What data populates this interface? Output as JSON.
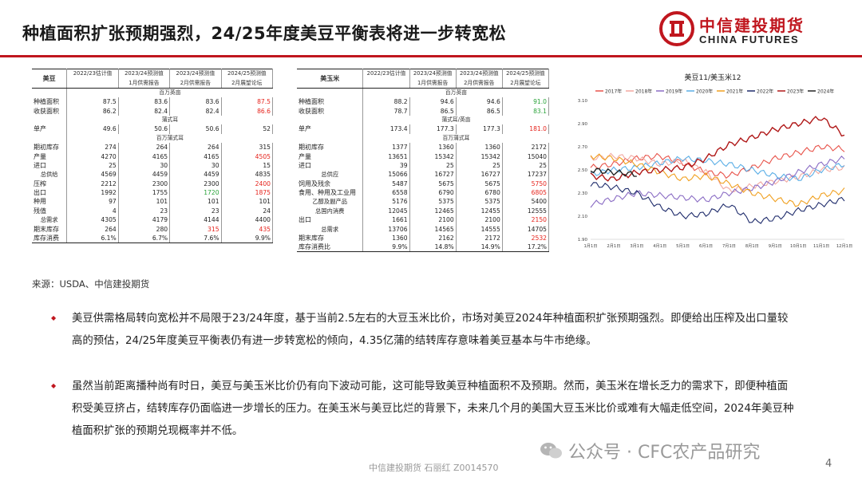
{
  "header": {
    "title": "种植面积扩张预期强烈，24/25年度美豆平衡表将进一步转宽松"
  },
  "logo": {
    "cn": "中信建投期货",
    "en": "CHINA FUTURES"
  },
  "colors": {
    "brand_red": "#c0161e",
    "highlight_red": "#e6221b",
    "highlight_green": "#2aa33a"
  },
  "soy_table": {
    "name": "美豆",
    "headers": [
      [
        "2022/23估计值",
        ""
      ],
      [
        "2023/24预测值",
        "1月供需报告"
      ],
      [
        "2023/24预测值",
        "2月供需报告"
      ],
      [
        "2024/25预测值",
        "2月展望论坛"
      ]
    ],
    "rows": [
      {
        "type": "unit",
        "text": "百万英亩"
      },
      {
        "label": "种植面积",
        "values": [
          "87.5",
          "83.6",
          "83.6",
          "87.5"
        ],
        "colors": [
          "",
          "",
          "",
          "red"
        ]
      },
      {
        "label": "收获面积",
        "values": [
          "86.2",
          "82.4",
          "82.4",
          "86.6"
        ],
        "colors": [
          "",
          "",
          "",
          "red"
        ]
      },
      {
        "type": "unit",
        "text": "蒲式耳"
      },
      {
        "label": "单产",
        "values": [
          "49.6",
          "50.6",
          "50.6",
          "52"
        ],
        "colors": [
          "",
          "",
          "",
          ""
        ]
      },
      {
        "type": "unit",
        "text": "百万蒲式耳"
      },
      {
        "label": "期初库存",
        "values": [
          "274",
          "264",
          "264",
          "315"
        ],
        "colors": [
          "",
          "",
          "",
          ""
        ]
      },
      {
        "label": "产量",
        "values": [
          "4270",
          "4165",
          "4165",
          "4505"
        ],
        "colors": [
          "",
          "",
          "",
          "red"
        ]
      },
      {
        "label": "进口",
        "values": [
          "25",
          "30",
          "30",
          "15"
        ],
        "colors": [
          "",
          "",
          "",
          ""
        ]
      },
      {
        "label": "总供给",
        "values": [
          "4569",
          "4459",
          "4459",
          "4835"
        ],
        "colors": [
          "",
          "",
          "",
          ""
        ],
        "center": true
      },
      {
        "label": "压榨",
        "values": [
          "2212",
          "2300",
          "2300",
          "2400"
        ],
        "colors": [
          "",
          "",
          "",
          "red"
        ]
      },
      {
        "label": "出口",
        "values": [
          "1992",
          "1755",
          "1720",
          "1875"
        ],
        "colors": [
          "",
          "",
          "green",
          "red"
        ]
      },
      {
        "label": "种用",
        "values": [
          "97",
          "101",
          "101",
          "101"
        ],
        "colors": [
          "",
          "",
          "",
          ""
        ]
      },
      {
        "label": "残值",
        "values": [
          "4",
          "23",
          "23",
          "24"
        ],
        "colors": [
          "",
          "",
          "",
          ""
        ]
      },
      {
        "label": "总需求",
        "values": [
          "4305",
          "4179",
          "4144",
          "4400"
        ],
        "colors": [
          "",
          "",
          "",
          ""
        ],
        "center": true
      },
      {
        "label": "期末库存",
        "values": [
          "264",
          "280",
          "315",
          "435"
        ],
        "colors": [
          "",
          "",
          "red",
          "red"
        ]
      },
      {
        "label": "库存消费",
        "values": [
          "6.1%",
          "6.7%",
          "7.6%",
          "9.9%"
        ],
        "colors": [
          "",
          "",
          "",
          ""
        ]
      }
    ]
  },
  "corn_table": {
    "name": "美玉米",
    "headers": [
      [
        "2022/23估计值",
        ""
      ],
      [
        "2023/24预测值",
        "1月供需报告"
      ],
      [
        "2023/24预测值",
        "2月供需报告"
      ],
      [
        "2024/25预测值",
        "2月展望论坛"
      ]
    ],
    "rows": [
      {
        "type": "unit",
        "text": "百万英亩"
      },
      {
        "label": "种植面积",
        "values": [
          "88.2",
          "94.6",
          "94.6",
          "91.0"
        ],
        "colors": [
          "",
          "",
          "",
          "green"
        ]
      },
      {
        "label": "收获面积",
        "values": [
          "78.7",
          "86.5",
          "86.5",
          "83.1"
        ],
        "colors": [
          "",
          "",
          "",
          "green"
        ]
      },
      {
        "type": "unit",
        "text": "蒲式耳/英亩"
      },
      {
        "label": "单产",
        "values": [
          "173.4",
          "177.3",
          "177.3",
          "181.0"
        ],
        "colors": [
          "",
          "",
          "",
          "red"
        ]
      },
      {
        "type": "unit",
        "text": "百万蒲式耳"
      },
      {
        "label": "期初库存",
        "values": [
          "1377",
          "1360",
          "1360",
          "2172"
        ],
        "colors": [
          "",
          "",
          "",
          ""
        ]
      },
      {
        "label": "产量",
        "values": [
          "13651",
          "15342",
          "15342",
          "15040"
        ],
        "colors": [
          "",
          "",
          "",
          ""
        ]
      },
      {
        "label": "进口",
        "values": [
          "39",
          "25",
          "25",
          "25"
        ],
        "colors": [
          "",
          "",
          "",
          ""
        ]
      },
      {
        "label": "总供应",
        "values": [
          "15066",
          "16727",
          "16727",
          "17237"
        ],
        "colors": [
          "",
          "",
          "",
          ""
        ],
        "center": true
      },
      {
        "label": "饲用及残余",
        "values": [
          "5487",
          "5675",
          "5675",
          "5750"
        ],
        "colors": [
          "",
          "",
          "",
          "red"
        ]
      },
      {
        "label": "食用、种用及工业用",
        "values": [
          "6558",
          "6790",
          "6780",
          "6805"
        ],
        "colors": [
          "",
          "",
          "",
          "red"
        ]
      },
      {
        "label": "乙醇及副产品",
        "values": [
          "5176",
          "5375",
          "5375",
          "5400"
        ],
        "colors": [
          "",
          "",
          "",
          ""
        ],
        "center": true
      },
      {
        "label": "总国内消费",
        "values": [
          "12045",
          "12465",
          "12455",
          "12555"
        ],
        "colors": [
          "",
          "",
          "",
          ""
        ],
        "center": true
      },
      {
        "label": "出口",
        "values": [
          "1661",
          "2100",
          "2100",
          "2150"
        ],
        "colors": [
          "",
          "",
          "",
          "red"
        ]
      },
      {
        "label": "总需求",
        "values": [
          "13706",
          "14565",
          "14555",
          "14705"
        ],
        "colors": [
          "",
          "",
          "",
          ""
        ],
        "center": true
      },
      {
        "label": "期末库存",
        "values": [
          "1360",
          "2162",
          "2172",
          "2532"
        ],
        "colors": [
          "",
          "",
          "",
          "red"
        ]
      },
      {
        "label": "库存消费比",
        "values": [
          "9.9%",
          "14.8%",
          "14.9%",
          "17.2%"
        ],
        "colors": [
          "",
          "",
          "",
          ""
        ]
      }
    ]
  },
  "chart_data": {
    "type": "line",
    "title": "美豆11/美玉米12",
    "legend_position": "top",
    "x": [
      "1月1日",
      "2月1日",
      "3月1日",
      "4月1日",
      "5月1日",
      "6月1日",
      "7月1日",
      "8月1日",
      "9月1日",
      "10月1日",
      "11月1日",
      "12月1日"
    ],
    "ylim": [
      1.9,
      3.1
    ],
    "yticks": [
      "3.10",
      "2.90",
      "2.70",
      "2.50",
      "2.30",
      "2.10",
      "1.90"
    ],
    "grid": false,
    "series": [
      {
        "name": "2017年",
        "color": "#e8534a",
        "values": [
          2.52,
          2.55,
          2.6,
          2.62,
          2.56,
          2.48,
          2.45,
          2.52,
          2.6,
          2.65,
          2.7,
          2.68
        ]
      },
      {
        "name": "2018年",
        "color": "#f2a8a0",
        "values": [
          2.6,
          2.62,
          2.6,
          2.55,
          2.58,
          2.48,
          2.32,
          2.36,
          2.4,
          2.44,
          2.5,
          2.52
        ]
      },
      {
        "name": "2019年",
        "color": "#8a6cc4",
        "values": [
          2.2,
          2.25,
          2.3,
          2.28,
          2.26,
          2.24,
          2.3,
          2.34,
          2.4,
          2.48,
          2.55,
          2.6
        ]
      },
      {
        "name": "2020年",
        "color": "#5aaee6",
        "values": [
          2.46,
          2.5,
          2.52,
          2.56,
          2.6,
          2.58,
          2.55,
          2.5,
          2.45,
          2.42,
          2.5,
          2.55
        ]
      },
      {
        "name": "2021年",
        "color": "#f0a020",
        "values": [
          2.62,
          2.6,
          2.55,
          2.48,
          2.42,
          2.45,
          2.38,
          2.3,
          2.25,
          2.2,
          2.28,
          2.32
        ]
      },
      {
        "name": "2022年",
        "color": "#1e2b6b",
        "values": [
          2.38,
          2.35,
          2.3,
          2.18,
          2.1,
          2.12,
          2.2,
          2.05,
          2.08,
          2.15,
          2.2,
          2.25
        ]
      },
      {
        "name": "2023年",
        "color": "#b01818",
        "values": [
          2.45,
          2.42,
          2.48,
          2.5,
          2.52,
          2.6,
          2.72,
          2.78,
          2.85,
          2.9,
          2.95,
          2.8
        ]
      },
      {
        "name": "2024年",
        "color": "#222222",
        "values": [
          2.5,
          2.48,
          2.46,
          null,
          null,
          null,
          null,
          null,
          null,
          null,
          null,
          null
        ]
      }
    ]
  },
  "source": "来源：USDA、中信建投期货",
  "bullets": [
    "美豆供需格局转向宽松并不局限于23/24年度，基于当前2.5左右的大豆玉米比价，市场对美豆2024年种植面积扩张预期强烈。即便给出压榨及出口量较高的预估，24/25年度美豆平衡表仍有进一步转宽松的倾向，4.35亿蒲的结转库存意味着美豆基本与牛市绝缘。",
    "虽然当前距离播种尚有时日，美豆与美玉米比价仍有向下波动可能，这可能导致美豆种植面积不及预期。然而，美玉米在增长乏力的需求下，即便种植面积受美豆挤占，结转库存仍面临进一步增长的压力。在美玉米与美豆比烂的背景下，未来几个月的美国大豆玉米比价或难有大幅走低空间，2024年美豆种植面积扩张的预期兑现概率并不低。"
  ],
  "footer": {
    "text": "中信建投期货  石丽红  Z0014570",
    "page": "4"
  },
  "watermark": {
    "text": "公众号 · CFC农产品研究"
  }
}
